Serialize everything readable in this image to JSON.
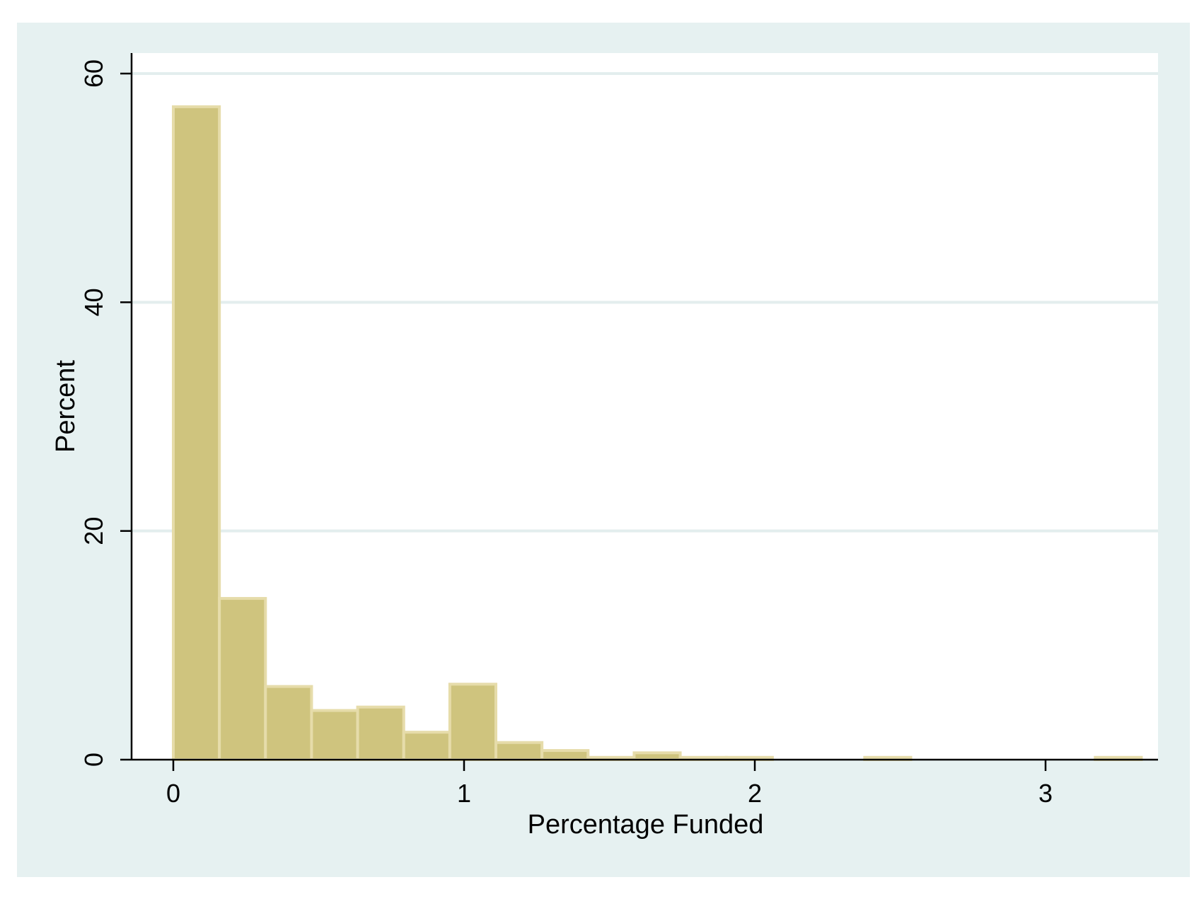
{
  "chart_data": {
    "type": "bar",
    "title": "",
    "xlabel": "Percentage Funded",
    "ylabel": "Percent",
    "xlim": [
      -0.15,
      3.4
    ],
    "ylim": [
      0,
      60
    ],
    "x_ticks": [
      0,
      1,
      2,
      3
    ],
    "y_ticks": [
      0,
      20,
      40,
      60
    ],
    "grid": "horizontal",
    "legend": "none",
    "bin_width": 0.1585,
    "bins": [
      {
        "start": 0.0,
        "value": 57.1
      },
      {
        "start": 0.1585,
        "value": 14.1
      },
      {
        "start": 0.317,
        "value": 6.4
      },
      {
        "start": 0.4755,
        "value": 4.3
      },
      {
        "start": 0.634,
        "value": 4.6
      },
      {
        "start": 0.7925,
        "value": 2.4
      },
      {
        "start": 0.951,
        "value": 6.6
      },
      {
        "start": 1.1095,
        "value": 1.5
      },
      {
        "start": 1.268,
        "value": 0.8
      },
      {
        "start": 1.4265,
        "value": 0.2
      },
      {
        "start": 1.585,
        "value": 0.6
      },
      {
        "start": 1.7435,
        "value": 0.2
      },
      {
        "start": 1.902,
        "value": 0.2
      },
      {
        "start": 2.378,
        "value": 0.2
      },
      {
        "start": 3.171,
        "value": 0.2
      }
    ],
    "colors": {
      "outer_background": "#e6f1f1",
      "plot_background": "#ffffff",
      "bar_fill": "#cfc47e",
      "bar_edge": "#e6dcaa",
      "gridline": "#e3eeee",
      "axis": "#000000"
    }
  }
}
